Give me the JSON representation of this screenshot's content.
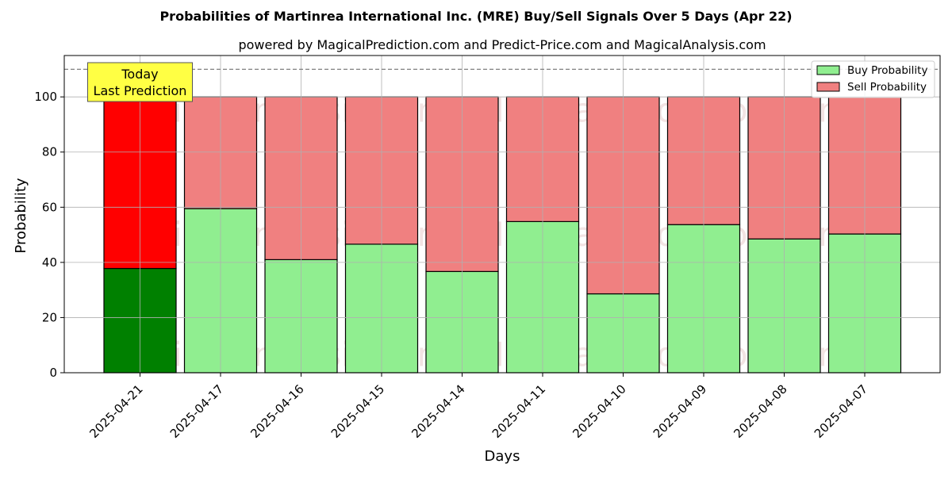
{
  "chart_data": {
    "type": "bar",
    "stacked": true,
    "title": "Probabilities of Martinrea International Inc. (MRE) Buy/Sell Signals Over 5 Days (Apr 22)",
    "subtitle": "powered by MagicalPrediction.com and Predict-Price.com and MagicalAnalysis.com",
    "xlabel": "Days",
    "ylabel": "Probability",
    "ylim": [
      0,
      115
    ],
    "yticks": [
      0,
      20,
      40,
      60,
      80,
      100
    ],
    "categories": [
      "2025-04-21",
      "2025-04-17",
      "2025-04-16",
      "2025-04-15",
      "2025-04-14",
      "2025-04-11",
      "2025-04-10",
      "2025-04-09",
      "2025-04-08",
      "2025-04-07"
    ],
    "series": [
      {
        "name": "Buy Probability",
        "values": [
          37.8,
          59.5,
          41.0,
          46.6,
          36.7,
          54.8,
          28.6,
          53.7,
          48.5,
          50.3
        ],
        "color": "#90ee90",
        "highlight_color": "#008000"
      },
      {
        "name": "Sell Probability",
        "values": [
          62.2,
          40.5,
          59.0,
          53.4,
          63.3,
          45.2,
          71.4,
          46.3,
          51.5,
          49.7
        ],
        "color": "#f08080",
        "highlight_color": "#ff0000"
      }
    ],
    "reference_line": 110,
    "highlight_index": 0,
    "annotation": {
      "lines": [
        "Today",
        "Last Prediction"
      ],
      "background": "#ffff44"
    },
    "watermarks": [
      "MagicalAnalysis.com",
      "MagicalPrediction.com"
    ],
    "legend_position": "top-right",
    "grid": true
  }
}
